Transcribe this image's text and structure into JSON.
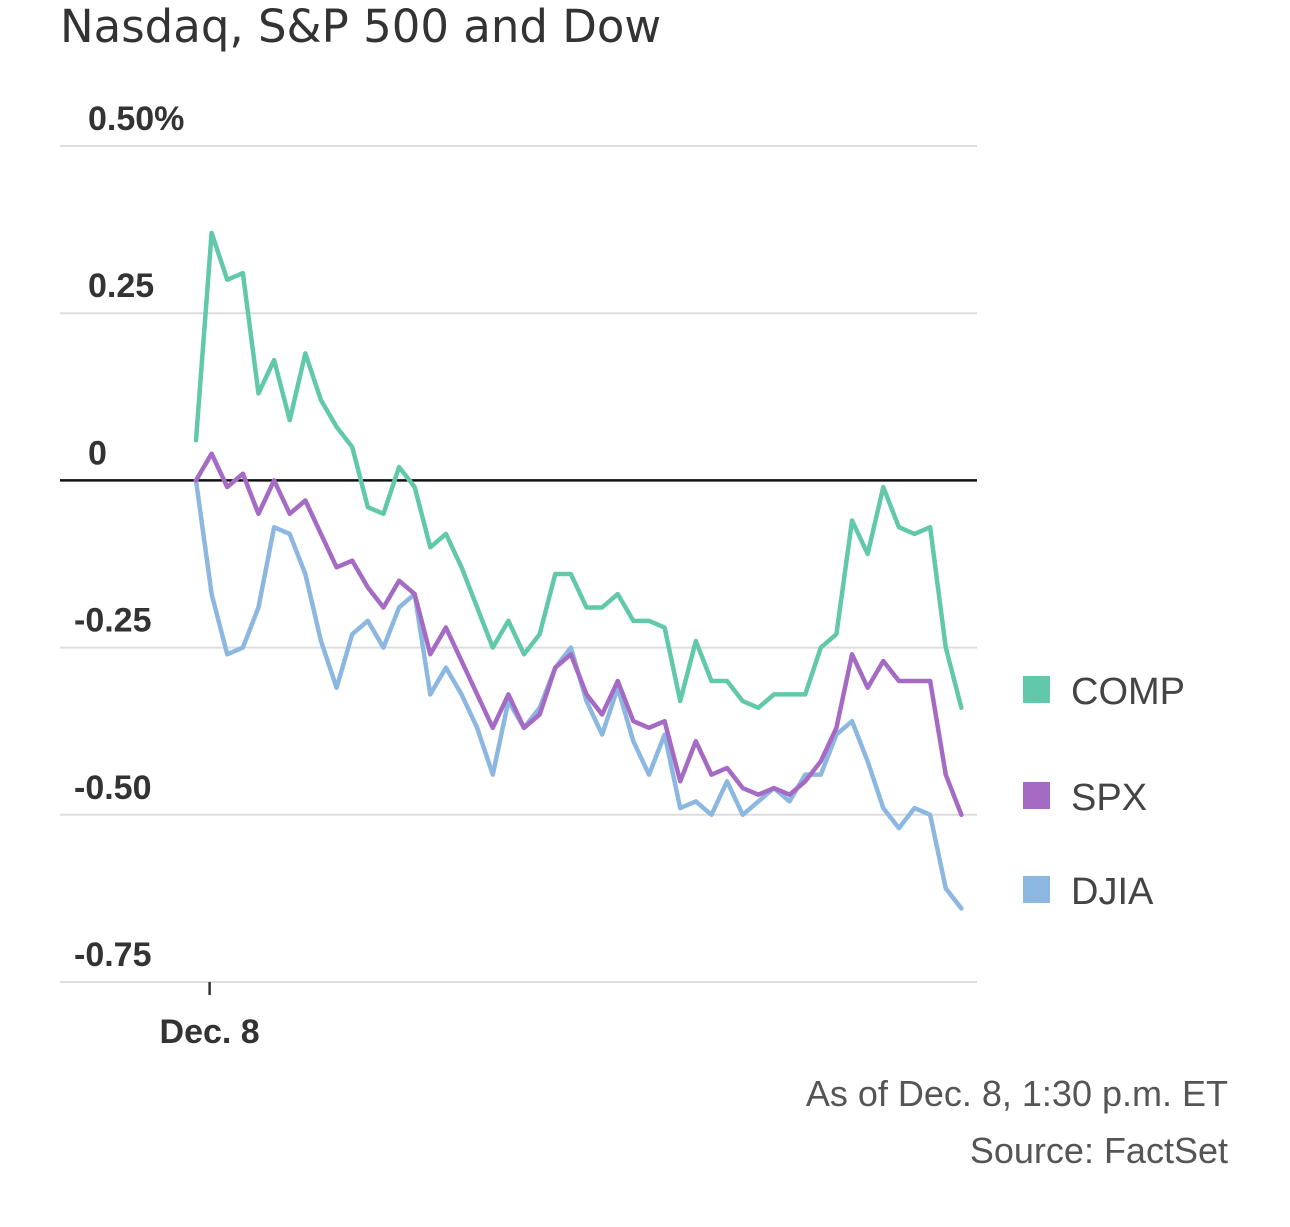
{
  "chart_data": {
    "type": "line",
    "title": "Nasdaq, S&P 500 and Dow",
    "ylim": [
      -0.75,
      0.5
    ],
    "yticks": [
      {
        "value": 0.5,
        "label": "0.50%"
      },
      {
        "value": 0.25,
        "label": "0.25"
      },
      {
        "value": 0,
        "label": "0"
      },
      {
        "value": -0.25,
        "label": "-0.25"
      },
      {
        "value": -0.5,
        "label": "-0.50"
      },
      {
        "value": -0.75,
        "label": "-0.75"
      }
    ],
    "xlim": [
      0,
      50
    ],
    "xticks": [
      {
        "value": 1,
        "label": "Dec. 8"
      }
    ],
    "legend_position": "right",
    "series": [
      {
        "name": "COMP",
        "color": "#62c8aa",
        "values": [
          0.06,
          0.37,
          0.3,
          0.31,
          0.13,
          0.18,
          0.09,
          0.19,
          0.12,
          0.08,
          0.05,
          -0.04,
          -0.05,
          0.02,
          -0.01,
          -0.1,
          -0.08,
          -0.13,
          -0.19,
          -0.25,
          -0.21,
          -0.26,
          -0.23,
          -0.14,
          -0.14,
          -0.19,
          -0.19,
          -0.17,
          -0.21,
          -0.21,
          -0.22,
          -0.33,
          -0.24,
          -0.3,
          -0.3,
          -0.33,
          -0.34,
          -0.32,
          -0.32,
          -0.32,
          -0.25,
          -0.23,
          -0.06,
          -0.11,
          -0.01,
          -0.07,
          -0.08,
          -0.07,
          -0.25,
          -0.34
        ]
      },
      {
        "name": "SPX",
        "color": "#a56bc4",
        "values": [
          0.0,
          0.04,
          -0.01,
          0.01,
          -0.05,
          0.0,
          -0.05,
          -0.03,
          -0.08,
          -0.13,
          -0.12,
          -0.16,
          -0.19,
          -0.15,
          -0.17,
          -0.26,
          -0.22,
          -0.27,
          -0.32,
          -0.37,
          -0.32,
          -0.37,
          -0.35,
          -0.28,
          -0.26,
          -0.32,
          -0.35,
          -0.3,
          -0.36,
          -0.37,
          -0.36,
          -0.45,
          -0.39,
          -0.44,
          -0.43,
          -0.46,
          -0.47,
          -0.46,
          -0.47,
          -0.45,
          -0.42,
          -0.37,
          -0.26,
          -0.31,
          -0.27,
          -0.3,
          -0.3,
          -0.3,
          -0.44,
          -0.5
        ]
      },
      {
        "name": "DJIA",
        "color": "#8cb7e0",
        "values": [
          0.0,
          -0.17,
          -0.26,
          -0.25,
          -0.19,
          -0.07,
          -0.08,
          -0.14,
          -0.24,
          -0.31,
          -0.23,
          -0.21,
          -0.25,
          -0.19,
          -0.17,
          -0.32,
          -0.28,
          -0.32,
          -0.37,
          -0.44,
          -0.33,
          -0.37,
          -0.34,
          -0.28,
          -0.25,
          -0.33,
          -0.38,
          -0.31,
          -0.39,
          -0.44,
          -0.38,
          -0.49,
          -0.48,
          -0.5,
          -0.45,
          -0.5,
          -0.48,
          -0.46,
          -0.48,
          -0.44,
          -0.44,
          -0.38,
          -0.36,
          -0.42,
          -0.49,
          -0.52,
          -0.49,
          -0.5,
          -0.61,
          -0.64
        ]
      }
    ]
  },
  "footer": {
    "as_of": "As of Dec. 8, 1:30 p.m. ET",
    "source": "Source: FactSet"
  }
}
